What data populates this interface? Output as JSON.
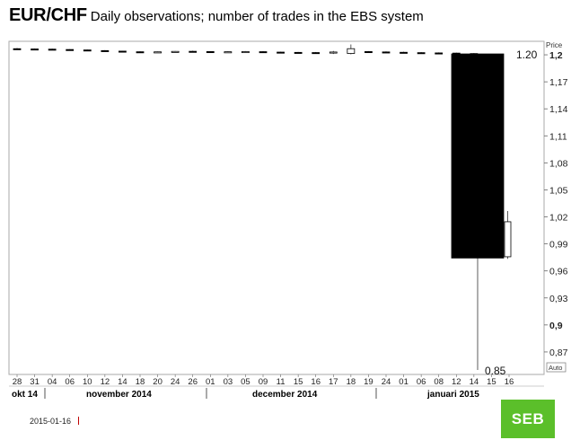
{
  "header": {
    "title": "EUR/CHF",
    "subtitle": "Daily observations; number of trades in the EBS system"
  },
  "footer": {
    "date": "2015-01-16",
    "logo_text": "SEB"
  },
  "colors": {
    "brand_green": "#5bbf2a",
    "candle_down": "#000000",
    "candle_up": "#ffffff",
    "accent_red": "#c00000"
  },
  "chart_data": {
    "type": "candlestick",
    "ylabel": "Price",
    "y_scale_button": "Auto",
    "ylim": [
      0.845,
      1.215
    ],
    "y_ticks": [
      {
        "value": 1.2,
        "label": "1,2",
        "bold": true
      },
      {
        "value": 1.17,
        "label": "1,17"
      },
      {
        "value": 1.14,
        "label": "1,14"
      },
      {
        "value": 1.11,
        "label": "1,11"
      },
      {
        "value": 1.08,
        "label": "1,08"
      },
      {
        "value": 1.05,
        "label": "1,05"
      },
      {
        "value": 1.02,
        "label": "1,02"
      },
      {
        "value": 0.99,
        "label": "0,99"
      },
      {
        "value": 0.96,
        "label": "0,96"
      },
      {
        "value": 0.93,
        "label": "0,93"
      },
      {
        "value": 0.9,
        "label": "0,9",
        "bold": true
      },
      {
        "value": 0.87,
        "label": "0,87"
      }
    ],
    "x_tick_labels": [
      "28",
      "31",
      "04",
      "06",
      "10",
      "12",
      "14",
      "18",
      "20",
      "24",
      "26",
      "01",
      "03",
      "05",
      "09",
      "11",
      "15",
      "16",
      "17",
      "18",
      "19",
      "24",
      "01",
      "06",
      "08",
      "12",
      "14",
      "15",
      "16"
    ],
    "month_labels": [
      {
        "label": "okt 14",
        "tick": 0
      },
      {
        "label": "november 2014",
        "tick": 5
      },
      {
        "label": "december 2014",
        "tick": 16
      },
      {
        "label": "januari 2015",
        "tick": 26
      }
    ],
    "annotations": [
      {
        "text": "1.20",
        "value": 1.201
      },
      {
        "text": "0.85",
        "value": 0.85
      }
    ],
    "candles": [
      {
        "date": "28",
        "open": 1.2068,
        "high": 1.2075,
        "low": 1.2062,
        "close": 1.2066
      },
      {
        "date": "31",
        "open": 1.2065,
        "high": 1.207,
        "low": 1.206,
        "close": 1.2064
      },
      {
        "date": "04",
        "open": 1.2063,
        "high": 1.2068,
        "low": 1.2058,
        "close": 1.2061
      },
      {
        "date": "06",
        "open": 1.2059,
        "high": 1.2063,
        "low": 1.2053,
        "close": 1.2055
      },
      {
        "date": "10",
        "open": 1.2054,
        "high": 1.2058,
        "low": 1.2045,
        "close": 1.2048
      },
      {
        "date": "12",
        "open": 1.2047,
        "high": 1.2052,
        "low": 1.2038,
        "close": 1.2042
      },
      {
        "date": "14",
        "open": 1.2041,
        "high": 1.2045,
        "low": 1.2032,
        "close": 1.2035
      },
      {
        "date": "18",
        "open": 1.2034,
        "high": 1.2039,
        "low": 1.2026,
        "close": 1.2031
      },
      {
        "date": "20",
        "open": 1.203,
        "high": 1.2036,
        "low": 1.2024,
        "close": 1.2033
      },
      {
        "date": "24",
        "open": 1.2033,
        "high": 1.2042,
        "low": 1.2027,
        "close": 1.2038
      },
      {
        "date": "26",
        "open": 1.2039,
        "high": 1.2046,
        "low": 1.2031,
        "close": 1.2037
      },
      {
        "date": "01",
        "open": 1.2036,
        "high": 1.204,
        "low": 1.2028,
        "close": 1.2031
      },
      {
        "date": "03",
        "open": 1.203,
        "high": 1.2038,
        "low": 1.2025,
        "close": 1.2034
      },
      {
        "date": "05",
        "open": 1.2034,
        "high": 1.2042,
        "low": 1.2029,
        "close": 1.2036
      },
      {
        "date": "09",
        "open": 1.2035,
        "high": 1.204,
        "low": 1.2027,
        "close": 1.2031
      },
      {
        "date": "11",
        "open": 1.203,
        "high": 1.2035,
        "low": 1.2022,
        "close": 1.2028
      },
      {
        "date": "15",
        "open": 1.2027,
        "high": 1.2032,
        "low": 1.202,
        "close": 1.2025
      },
      {
        "date": "16",
        "open": 1.2025,
        "high": 1.2031,
        "low": 1.2016,
        "close": 1.2023
      },
      {
        "date": "17",
        "open": 1.2023,
        "high": 1.2043,
        "low": 1.2009,
        "close": 1.2031
      },
      {
        "date": "18",
        "open": 1.2015,
        "high": 1.2115,
        "low": 1.2005,
        "close": 1.2068
      },
      {
        "date": "19",
        "open": 1.2036,
        "high": 1.2042,
        "low": 1.2026,
        "close": 1.2032
      },
      {
        "date": "24",
        "open": 1.2032,
        "high": 1.2038,
        "low": 1.2024,
        "close": 1.2029
      },
      {
        "date": "01",
        "open": 1.2028,
        "high": 1.2034,
        "low": 1.2021,
        "close": 1.2025
      },
      {
        "date": "06",
        "open": 1.2024,
        "high": 1.203,
        "low": 1.2018,
        "close": 1.2022
      },
      {
        "date": "08",
        "open": 1.2021,
        "high": 1.2027,
        "low": 1.2015,
        "close": 1.2019
      },
      {
        "date": "12",
        "open": 1.2019,
        "high": 1.2024,
        "low": 1.2012,
        "close": 1.2015
      },
      {
        "date": "14",
        "open": 1.2014,
        "high": 1.2019,
        "low": 1.2009,
        "close": 1.2012
      },
      {
        "date": "15",
        "open": 1.201,
        "high": 1.201,
        "low": 0.85,
        "close": 0.9743
      },
      {
        "date": "16",
        "open": 0.9757,
        "high": 1.0265,
        "low": 0.9734,
        "close": 1.0146
      }
    ]
  }
}
